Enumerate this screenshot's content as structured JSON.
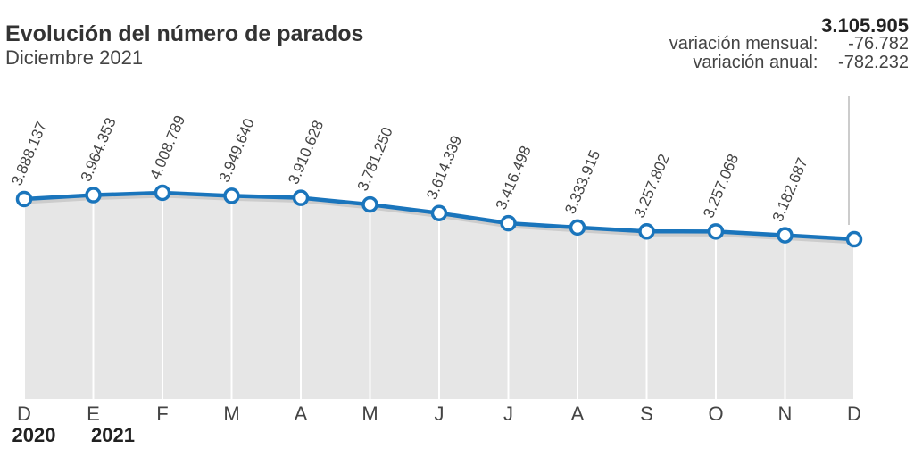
{
  "chart_data": {
    "type": "area",
    "title": "Evolución del número de parados",
    "subtitle": "Diciembre 2021",
    "summary": {
      "value_label": "3.105.905",
      "monthly_label": "variación mensual:",
      "monthly_value": "-76.782",
      "annual_label": "variación anual:",
      "annual_value": "-782.232"
    },
    "categories": [
      "D",
      "E",
      "F",
      "M",
      "A",
      "M",
      "J",
      "J",
      "A",
      "S",
      "O",
      "N",
      "D"
    ],
    "year_labels": [
      {
        "index": 0,
        "label": "2020"
      },
      {
        "index": 1,
        "label": "2021"
      }
    ],
    "values": [
      3888137,
      3964353,
      4008789,
      3949640,
      3910628,
      3781250,
      3614339,
      3416498,
      3333915,
      3257802,
      3257068,
      3182687,
      3105905
    ],
    "value_labels": [
      "3.888.137",
      "3.964.353",
      "4.008.789",
      "3.949.640",
      "3.910.628",
      "3.781.250",
      "3.614.339",
      "3.416.498",
      "3.333.915",
      "3.257.802",
      "3.257.068",
      "3.182.687",
      ""
    ],
    "ylim": [
      0,
      4008789
    ],
    "xlabel": "",
    "ylabel": "",
    "grid": "vertical",
    "colors": {
      "line": "#1a75bc",
      "area": "#e6e6e6",
      "shadow": "#cccccc",
      "grid": "#ffffff",
      "marker_fill": "#ffffff",
      "text": "#444444"
    }
  }
}
